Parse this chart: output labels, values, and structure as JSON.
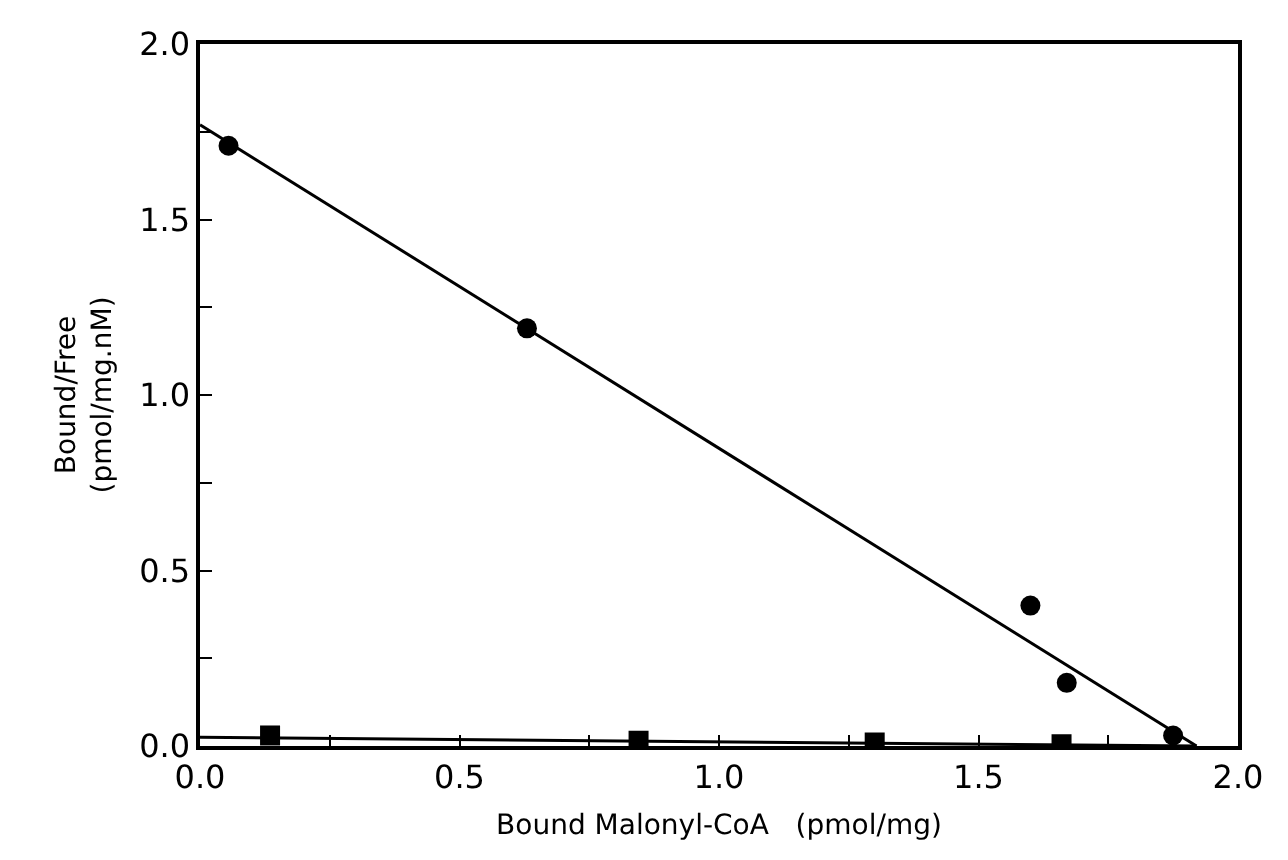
{
  "chart_data": {
    "type": "scatter",
    "xlabel": "Bound Malonyl-CoA   (pmol/mg)",
    "ylabel": "Bound/Free\n(pmol/mg.nM)",
    "xlim": [
      0,
      2
    ],
    "ylim": [
      0,
      2
    ],
    "xticks": [
      {
        "value": 0,
        "label": "0.0"
      },
      {
        "value": 0.25,
        "label": null
      },
      {
        "value": 0.5,
        "label": "0.5"
      },
      {
        "value": 0.75,
        "label": null
      },
      {
        "value": 1,
        "label": "1.0"
      },
      {
        "value": 1.25,
        "label": null
      },
      {
        "value": 1.5,
        "label": "1.5"
      },
      {
        "value": 1.75,
        "label": null
      },
      {
        "value": 2,
        "label": "2.0"
      }
    ],
    "yticks": [
      {
        "value": 0,
        "label": "0.0"
      },
      {
        "value": 0.25,
        "label": null
      },
      {
        "value": 0.5,
        "label": "0.5"
      },
      {
        "value": 0.75,
        "label": null
      },
      {
        "value": 1,
        "label": "1.0"
      },
      {
        "value": 1.25,
        "label": null
      },
      {
        "value": 1.5,
        "label": "1.5"
      },
      {
        "value": 1.75,
        "label": null
      },
      {
        "value": 2,
        "label": "2.0"
      }
    ],
    "grid": false,
    "series": [
      {
        "marker": "circle",
        "color": "#000000",
        "x": [
          0.055,
          0.63,
          1.6,
          1.67,
          1.875
        ],
        "values": [
          1.71,
          1.19,
          0.4,
          0.18,
          0.03
        ]
      },
      {
        "marker": "square",
        "color": "#000000",
        "x": [
          0.135,
          0.845,
          1.3,
          1.66
        ],
        "values": [
          0.03,
          0.015,
          0.01,
          0.005
        ]
      },
      {
        "type": "line",
        "marker": "none",
        "line_style": "solid",
        "color": "#000000",
        "x": [
          0,
          1.92
        ],
        "values": [
          1.77,
          0
        ]
      },
      {
        "type": "line",
        "marker": "none",
        "line_style": "solid",
        "color": "#000000",
        "x": [
          0,
          1.92
        ],
        "values": [
          0.025,
          0
        ]
      }
    ]
  }
}
